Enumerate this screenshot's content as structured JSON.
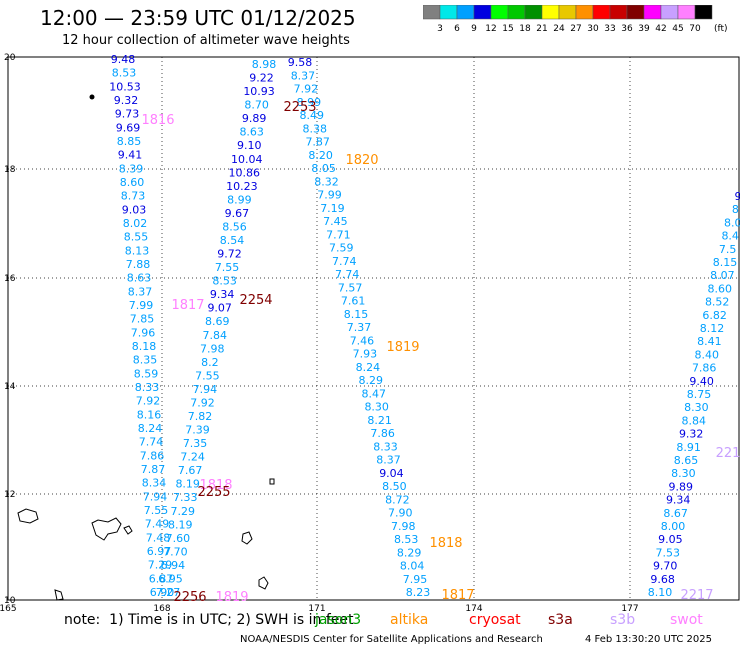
{
  "header": {
    "title": "12:00 — 23:59 UTC 01/12/2025",
    "subtitle": "12 hour collection of altimeter wave heights"
  },
  "legend": {
    "unit": "(ft)",
    "levels": [
      "3",
      "6",
      "9",
      "12",
      "15",
      "18",
      "21",
      "24",
      "27",
      "30",
      "33",
      "36",
      "39",
      "42",
      "45",
      "70"
    ],
    "colors": [
      "#808080",
      "#00e8e8",
      "#00a0ff",
      "#0000e0",
      "#00ff00",
      "#00c800",
      "#009000",
      "#ffff00",
      "#e8c800",
      "#ff9000",
      "#ff0000",
      "#c80000",
      "#800000",
      "#ff00ff",
      "#c8a0ff",
      "#ff80ff",
      "#000000"
    ]
  },
  "axes": {
    "x_ticks": [
      "165",
      "168",
      "171",
      "174",
      "177"
    ],
    "y_ticks": [
      "20",
      "18",
      "16",
      "14",
      "12",
      "10"
    ]
  },
  "tracks": [
    {
      "x0": 123,
      "y0": 63,
      "x1": 162,
      "y1": 596,
      "label_items": [
        "9.48",
        "8.53",
        "10.53",
        "9.32",
        "9.73",
        "9.69",
        "8.85",
        "9.41",
        "8.39",
        "8.60",
        "8.73",
        "9.03",
        "8.02",
        "8.55",
        "8.13",
        "7.88",
        "8.63",
        "8.37",
        "7.99",
        "7.85",
        "7.96",
        "8.18",
        "8.35",
        "8.59",
        "8.33",
        "7.92",
        "8.16",
        "8.24",
        "7.74",
        "7.86",
        "7.87",
        "8.34",
        "7.94",
        "7.55",
        "7.49",
        "7.48",
        "6.97",
        "7.29",
        "6.87",
        "6.90"
      ]
    },
    {
      "x0": 264,
      "y0": 68,
      "x1": 168,
      "y1": 596,
      "label_items": [
        "8.98",
        "9.22",
        "10.93",
        "8.70",
        "9.89",
        "8.63",
        "9.10",
        "10.04",
        "10.86",
        "10.23",
        "8.99",
        "9.67",
        "8.56",
        "8.54",
        "9.72",
        "7.55",
        "8.53",
        "9.34",
        "9.07",
        "8.69",
        "7.84",
        "7.98",
        "8.2",
        "7.55",
        "7.94",
        "7.92",
        "7.82",
        "7.39",
        "7.35",
        "7.24",
        "7.67",
        "8.19",
        "7.33",
        "7.29",
        "8.19",
        "7.60",
        "7.70",
        "6.94",
        "6.95",
        "7.27"
      ]
    },
    {
      "x0": 300,
      "y0": 66,
      "x1": 418,
      "y1": 596,
      "label_items": [
        "9.58",
        "8.37",
        "7.92",
        "8.99",
        "8.49",
        "8.38",
        "7.87",
        "8.20",
        "8.05",
        "8.32",
        "7.99",
        "7.19",
        "7.45",
        "7.71",
        "7.59",
        "7.74",
        "7.74",
        "7.57",
        "7.61",
        "8.15",
        "7.37",
        "7.46",
        "7.93",
        "8.24",
        "8.29",
        "8.47",
        "8.30",
        "8.21",
        "7.86",
        "8.33",
        "8.37",
        "9.04",
        "8.50",
        "8.72",
        "7.90",
        "7.98",
        "8.53",
        "8.29",
        "8.04",
        "7.95",
        "8.23"
      ]
    },
    {
      "x0": 738,
      "y0": 200,
      "x1": 660,
      "y1": 596,
      "label_items": [
        "9",
        "8",
        "8.0",
        "8.4",
        "7.5",
        "8.15",
        "8.07",
        "8.60",
        "8.52",
        "6.82",
        "8.12",
        "8.41",
        "8.40",
        "7.86",
        "9.40",
        "8.75",
        "8.30",
        "8.84",
        "9.32",
        "8.91",
        "8.65",
        "8.30",
        "9.89",
        "9.34",
        "8.67",
        "8.00",
        "9.05",
        "7.53",
        "9.70",
        "9.68",
        "8.10"
      ]
    }
  ],
  "pass_labels": [
    {
      "text": "1816",
      "color": "#ff80ff"
    },
    {
      "text": "2253",
      "color": "#800000"
    },
    {
      "text": "1820",
      "color": "#ff9000"
    },
    {
      "text": "1817",
      "color": "#ff80ff"
    },
    {
      "text": "2254",
      "color": "#800000"
    },
    {
      "text": "1819",
      "color": "#ff9000"
    },
    {
      "text": "221",
      "color": "#c8a0ff"
    },
    {
      "text": "1818",
      "color": "#ff80ff"
    },
    {
      "text": "2255",
      "color": "#800000"
    },
    {
      "text": "1818",
      "color": "#ff9000"
    },
    {
      "text": "2256",
      "color": "#800000"
    },
    {
      "text": "1819",
      "color": "#ff80ff"
    },
    {
      "text": "1817",
      "color": "#ff9000"
    },
    {
      "text": "2217",
      "color": "#c8a0ff"
    }
  ],
  "footer": {
    "note": "note:  1) Time is in UTC; 2) SWH is in feet",
    "satellites": [
      {
        "name": "jason3",
        "color": "#00a000"
      },
      {
        "name": "altika",
        "color": "#ff9000"
      },
      {
        "name": "cryosat",
        "color": "#ff0000"
      },
      {
        "name": "s3a",
        "color": "#800000"
      },
      {
        "name": "s3b",
        "color": "#c8a0ff"
      },
      {
        "name": "swot",
        "color": "#ff80ff"
      }
    ],
    "credit": "NOAA/NESDIS Center for Satellite Applications and Research",
    "stamp": "4 Feb 13:30:20 UTC 2025"
  }
}
